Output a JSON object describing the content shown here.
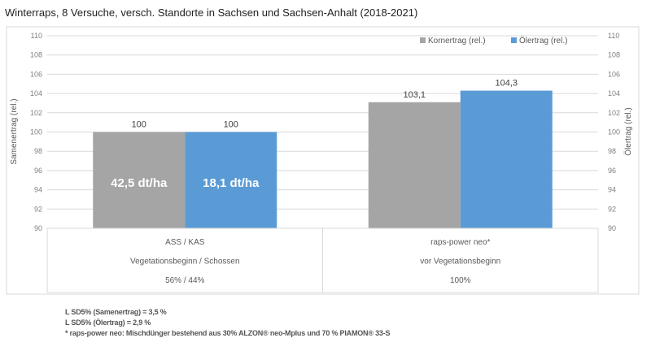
{
  "chart_data": {
    "type": "bar",
    "title": "Winterraps, 8 Versuche, versch. Standorte in Sachsen und Sachsen-Anhalt (2018-2021)",
    "ylabel": "Samenertrag (rel.)",
    "y2label": "Ölertrag (rel.)",
    "ylim": [
      90,
      110
    ],
    "yticks": [
      90,
      92,
      94,
      96,
      98,
      100,
      102,
      104,
      106,
      108,
      110
    ],
    "grid": true,
    "legend_position": "top-right",
    "categories": [
      {
        "lines": [
          "ASS / KAS",
          "Vegetationsbeginn / Schossen",
          "56% / 44%"
        ]
      },
      {
        "lines": [
          "raps-power neo*",
          "vor Vegetationsbeginn",
          "100%"
        ]
      }
    ],
    "series": [
      {
        "name": "Kornertrag (rel.)",
        "color": "#a5a5a5",
        "values": [
          100,
          103.1
        ],
        "labels": [
          "100",
          "103,1"
        ],
        "inner_labels": [
          "42,5 dt/ha",
          ""
        ]
      },
      {
        "name": "Ölertrag (rel.)",
        "color": "#5b9bd5",
        "values": [
          100,
          104.3
        ],
        "labels": [
          "100",
          "104,3"
        ],
        "inner_labels": [
          "18,1 dt/ha",
          ""
        ]
      }
    ]
  },
  "footnotes": [
    "L SD5% (Samenertrag) =  3,5 %",
    "L SD5% (Ölertrag) =  2,9 %",
    "* raps-power neo: Mischdünger bestehend aus 30% ALZON® neo-Mplus und 70 % PIAMON® 33-S"
  ]
}
